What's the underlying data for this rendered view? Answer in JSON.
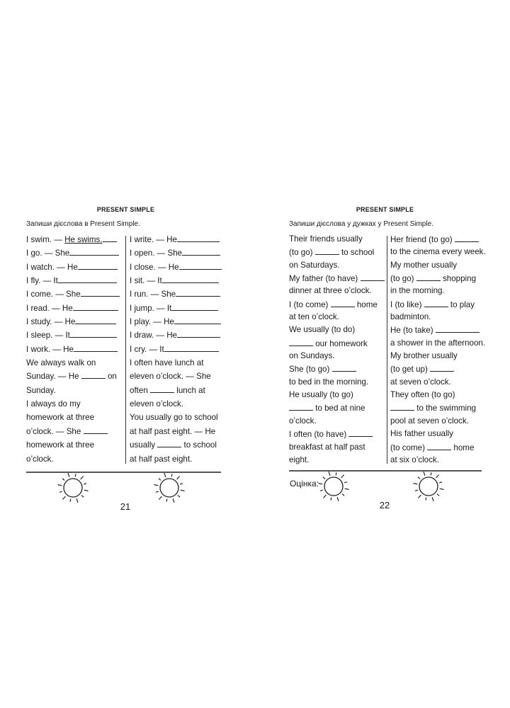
{
  "left_page": {
    "title": "PRESENT SIMPLE",
    "instruction": "Запиши дієслова в Present Simple.",
    "page_number": "21",
    "columns": [
      [
        {
          "text": "I swim. — ",
          "answer": "He swims.",
          "blank": 20
        },
        {
          "text": "I go. — She",
          "blank": 70
        },
        {
          "text": "I watch. — He",
          "blank": 56
        },
        {
          "text": "I fly. — It",
          "blank": 83
        },
        {
          "text": "I come. — She",
          "blank": 55
        },
        {
          "text": "I read. — He",
          "blank": 64
        },
        {
          "text": "I study. — He",
          "blank": 58
        },
        {
          "text": "I sleep. — It",
          "blank": 66
        },
        {
          "text": "I work. — He",
          "blank": 62
        },
        {
          "text": "We always walk on"
        },
        {
          "text": "Sunday. — He ",
          "blank": 34,
          "after": " on"
        },
        {
          "text": "Sunday."
        },
        {
          "text": "I always do my"
        },
        {
          "text": "homework at three"
        },
        {
          "text": "o’clock. — She ",
          "blank": 34
        },
        {
          "text": "homework at three"
        },
        {
          "text": "o’clock."
        }
      ],
      [
        {
          "text": "I write. — He",
          "blank": 60
        },
        {
          "text": "I open. — She",
          "blank": 54
        },
        {
          "text": "I close. — He",
          "blank": 60
        },
        {
          "text": "I sit. — It",
          "blank": 80
        },
        {
          "text": "I run. — She",
          "blank": 63
        },
        {
          "text": "I jump. — It",
          "blank": 66
        },
        {
          "text": "I play. — He",
          "blank": 66
        },
        {
          "text": "I draw. — He",
          "blank": 61
        },
        {
          "text": "I cry. — It",
          "blank": 77
        },
        {
          "text": "I often have lunch at"
        },
        {
          "text": "eleven o’clock. — She"
        },
        {
          "text": "often ",
          "blank": 34,
          "after": " lunch at"
        },
        {
          "text": "eleven o’clock."
        },
        {
          "text": "You usually go to school"
        },
        {
          "text": "at half past eight. — He"
        },
        {
          "text": "usually ",
          "blank": 34,
          "after": " to school"
        },
        {
          "text": "at half past eight."
        }
      ]
    ]
  },
  "right_page": {
    "title": "PRESENT SIMPLE",
    "instruction": "Запиши дієслова у дужках у Present Simple.",
    "page_number": "22",
    "grade_label": "Оцінка:",
    "columns": [
      [
        {
          "text": "Their friends usually"
        },
        {
          "text": "(to go) ",
          "blank": 34,
          "after": " to school"
        },
        {
          "text": "on Saturdays."
        },
        {
          "text": "My father (to have) ",
          "blank": 34
        },
        {
          "text": "dinner at three o’clock."
        },
        {
          "text": "I (to come) ",
          "blank": 34,
          "after": " home"
        },
        {
          "text": "at ten o’clock."
        },
        {
          "text": "We usually (to do)"
        },
        {
          "text": "",
          "blank": 34,
          "after": " our homework"
        },
        {
          "text": "on Sundays."
        },
        {
          "text": "She (to go) ",
          "blank": 34
        },
        {
          "text": "to bed in the morning."
        },
        {
          "text": "He usually (to go)"
        },
        {
          "text": "",
          "blank": 34,
          "after": " to bed at nine"
        },
        {
          "text": "o’clock."
        },
        {
          "text": "I often (to have) ",
          "blank": 34
        },
        {
          "text": "breakfast at half past"
        },
        {
          "text": "eight."
        }
      ],
      [
        {
          "text": "Her friend (to go) ",
          "blank": 34
        },
        {
          "text": "to the cinema every week."
        },
        {
          "text": "My mother usually"
        },
        {
          "text": "(to go) ",
          "blank": 34,
          "after": " shopping"
        },
        {
          "text": "in the morning."
        },
        {
          "text": "I (to like) ",
          "blank": 34,
          "after": " to play"
        },
        {
          "text": "badminton."
        },
        {
          "text": "He (to take) ",
          "blank": 62
        },
        {
          "text": "a shower in the afternoon."
        },
        {
          "text": "My brother usually"
        },
        {
          "text": "(to get up) ",
          "blank": 34
        },
        {
          "text": "at seven o’clock."
        },
        {
          "text": "They often (to go)"
        },
        {
          "text": "",
          "blank": 34,
          "after": " to the swimming"
        },
        {
          "text": "pool at seven o’clock."
        },
        {
          "text": "His father usually"
        },
        {
          "text": "(to come) ",
          "blank": 34,
          "after": " home"
        },
        {
          "text": "at six o’clock."
        }
      ]
    ]
  },
  "icons": {
    "sun": "sun-icon"
  }
}
